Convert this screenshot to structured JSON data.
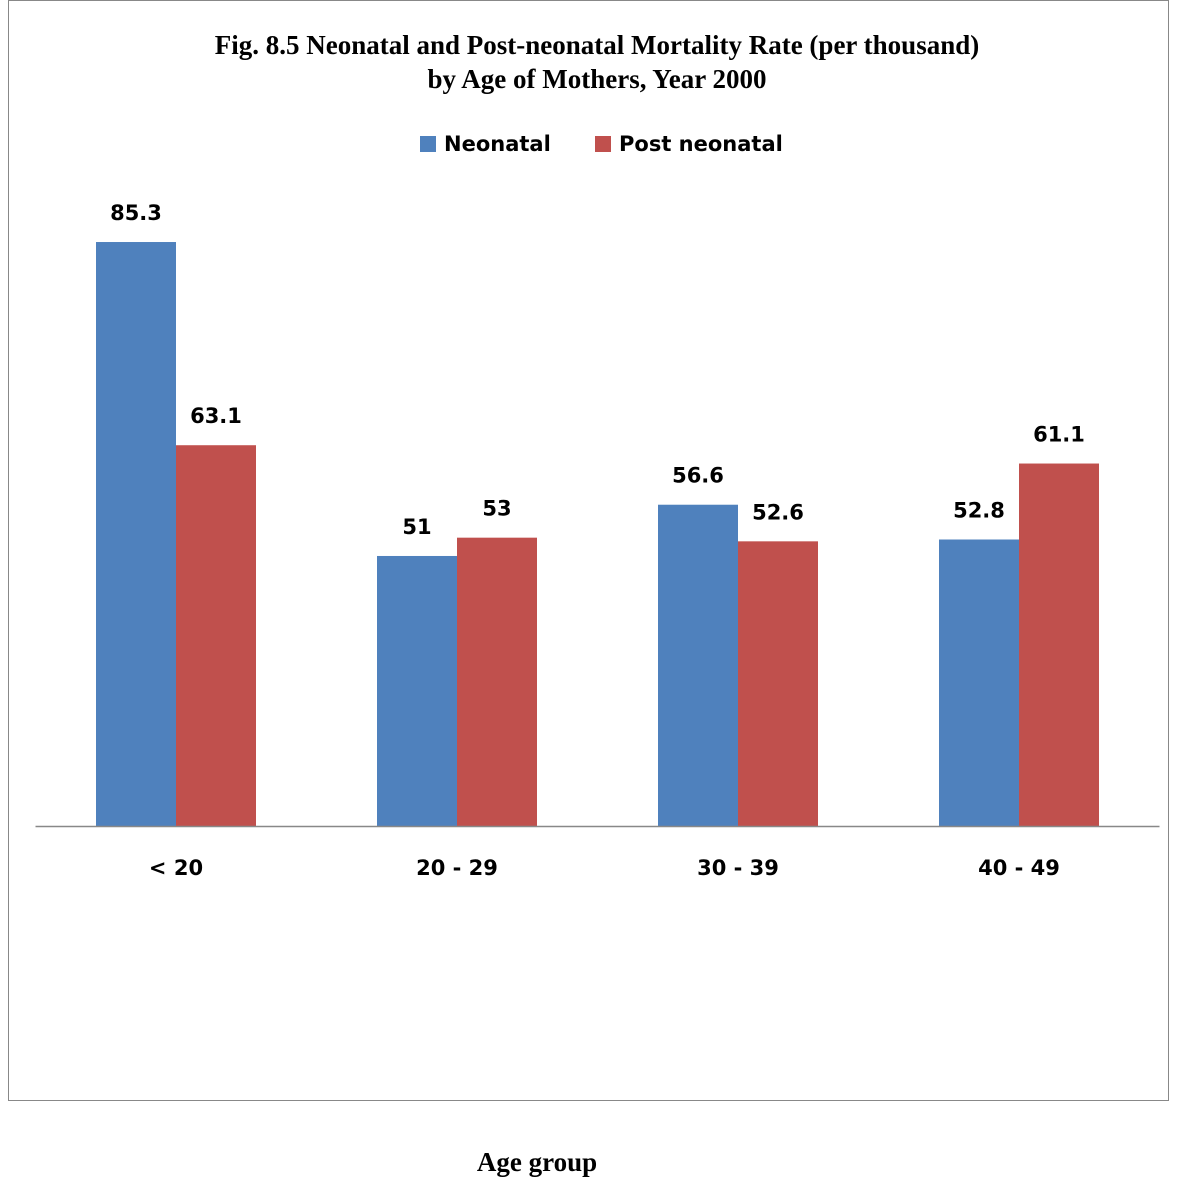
{
  "chart_data": {
    "type": "bar",
    "title": "Fig. 8.5 Neonatal and Post-neonatal Mortality Rate (per thousand)",
    "subtitle": "by Age of Mothers, Year 2000",
    "x_label": "Age group",
    "categories": [
      "< 20",
      "20 - 29",
      "30 - 39",
      "40 - 49"
    ],
    "series": [
      {
        "name": "Neonatal",
        "color": "#4f81bd",
        "values": [
          85.3,
          51,
          56.6,
          52.8
        ]
      },
      {
        "name": "Post neonatal",
        "color": "#c0504d",
        "values": [
          63.1,
          53,
          52.6,
          61.1
        ]
      }
    ],
    "ylim": [
      21.5,
      90
    ],
    "legend": "top"
  }
}
